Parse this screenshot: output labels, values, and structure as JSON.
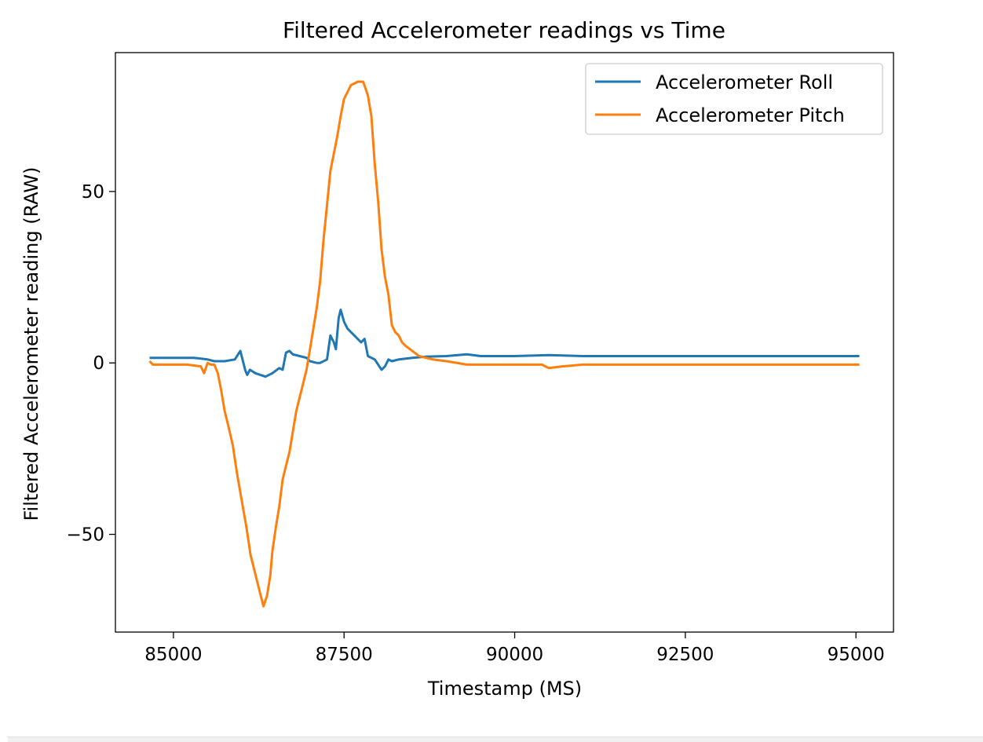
{
  "chart_data": {
    "type": "line",
    "title": "Filtered Accelerometer readings vs Time",
    "xlabel": "Timestamp (MS)",
    "ylabel": "Filtered Accelerometer reading (RAW)",
    "xlim": [
      84150,
      95550
    ],
    "ylim": [
      -78.5,
      90.5
    ],
    "xticks": [
      85000,
      87500,
      90000,
      92500,
      95000
    ],
    "xtick_labels": [
      "85000",
      "87500",
      "90000",
      "92500",
      "95000"
    ],
    "yticks": [
      50,
      0,
      -50
    ],
    "ytick_labels": [
      "50",
      "0",
      "−50"
    ],
    "grid": false,
    "legend_position": "top-right",
    "series": [
      {
        "name": "Accelerometer Roll",
        "color": "#1f77b4",
        "points": [
          [
            84650,
            1.5
          ],
          [
            85000,
            1.5
          ],
          [
            85300,
            1.5
          ],
          [
            85500,
            1.0
          ],
          [
            85600,
            0.5
          ],
          [
            85750,
            0.5
          ],
          [
            85900,
            1.0
          ],
          [
            85980,
            3.5
          ],
          [
            86000,
            2.0
          ],
          [
            86050,
            -2.0
          ],
          [
            86080,
            -3.5
          ],
          [
            86120,
            -2.0
          ],
          [
            86200,
            -3.0
          ],
          [
            86350,
            -4.0
          ],
          [
            86450,
            -3.0
          ],
          [
            86550,
            -1.5
          ],
          [
            86600,
            -2.0
          ],
          [
            86650,
            3.0
          ],
          [
            86700,
            3.5
          ],
          [
            86750,
            2.5
          ],
          [
            86850,
            2.0
          ],
          [
            86950,
            1.5
          ],
          [
            87000,
            0.5
          ],
          [
            87100,
            0.0
          ],
          [
            87150,
            0.0
          ],
          [
            87250,
            1.0
          ],
          [
            87300,
            8.0
          ],
          [
            87350,
            6.0
          ],
          [
            87380,
            4.0
          ],
          [
            87420,
            13.0
          ],
          [
            87450,
            15.5
          ],
          [
            87500,
            12.0
          ],
          [
            87550,
            10.0
          ],
          [
            87650,
            8.0
          ],
          [
            87750,
            6.0
          ],
          [
            87800,
            7.0
          ],
          [
            87850,
            2.0
          ],
          [
            87950,
            1.0
          ],
          [
            88050,
            -2.0
          ],
          [
            88100,
            -1.0
          ],
          [
            88150,
            1.0
          ],
          [
            88200,
            0.5
          ],
          [
            88300,
            1.0
          ],
          [
            88500,
            1.5
          ],
          [
            88700,
            1.8
          ],
          [
            89000,
            2.0
          ],
          [
            89300,
            2.5
          ],
          [
            89500,
            2.0
          ],
          [
            90000,
            2.0
          ],
          [
            90500,
            2.3
          ],
          [
            91000,
            2.0
          ],
          [
            91500,
            2.0
          ],
          [
            92000,
            2.0
          ],
          [
            92500,
            2.0
          ],
          [
            93000,
            2.0
          ],
          [
            93500,
            2.0
          ],
          [
            94000,
            2.0
          ],
          [
            94500,
            2.0
          ],
          [
            95050,
            2.0
          ]
        ]
      },
      {
        "name": "Accelerometer Pitch",
        "color": "#ff7f0e",
        "points": [
          [
            84650,
            0.5
          ],
          [
            84700,
            -0.5
          ],
          [
            84900,
            -0.5
          ],
          [
            85200,
            -0.5
          ],
          [
            85400,
            -1.0
          ],
          [
            85450,
            -3.0
          ],
          [
            85500,
            0.0
          ],
          [
            85550,
            -0.5
          ],
          [
            85600,
            -0.5
          ],
          [
            85650,
            -3.0
          ],
          [
            85700,
            -8.0
          ],
          [
            85750,
            -14.0
          ],
          [
            85800,
            -18.0
          ],
          [
            85870,
            -24.0
          ],
          [
            85930,
            -32.0
          ],
          [
            86000,
            -40.0
          ],
          [
            86070,
            -48.0
          ],
          [
            86130,
            -56.0
          ],
          [
            86180,
            -60.0
          ],
          [
            86230,
            -64.0
          ],
          [
            86280,
            -68.0
          ],
          [
            86320,
            -71.0
          ],
          [
            86370,
            -68.0
          ],
          [
            86420,
            -62.0
          ],
          [
            86450,
            -55.0
          ],
          [
            86500,
            -48.0
          ],
          [
            86550,
            -42.0
          ],
          [
            86600,
            -34.0
          ],
          [
            86650,
            -30.0
          ],
          [
            86700,
            -26.0
          ],
          [
            86750,
            -20.0
          ],
          [
            86800,
            -14.0
          ],
          [
            86850,
            -10.0
          ],
          [
            86900,
            -6.0
          ],
          [
            86950,
            -2.0
          ],
          [
            87000,
            4.0
          ],
          [
            87050,
            10.0
          ],
          [
            87100,
            16.0
          ],
          [
            87150,
            24.0
          ],
          [
            87200,
            36.0
          ],
          [
            87250,
            46.0
          ],
          [
            87300,
            56.0
          ],
          [
            87350,
            61.0
          ],
          [
            87400,
            66.0
          ],
          [
            87450,
            72.0
          ],
          [
            87500,
            77.0
          ],
          [
            87600,
            81.0
          ],
          [
            87700,
            82.0
          ],
          [
            87780,
            82.0
          ],
          [
            87850,
            78.0
          ],
          [
            87900,
            72.0
          ],
          [
            87950,
            58.0
          ],
          [
            88000,
            47.0
          ],
          [
            88050,
            33.0
          ],
          [
            88100,
            25.0
          ],
          [
            88150,
            20.0
          ],
          [
            88200,
            11.0
          ],
          [
            88250,
            9.0
          ],
          [
            88300,
            8.0
          ],
          [
            88350,
            6.0
          ],
          [
            88400,
            5.0
          ],
          [
            88500,
            3.5
          ],
          [
            88600,
            2.0
          ],
          [
            88800,
            1.0
          ],
          [
            89000,
            0.5
          ],
          [
            89300,
            -0.5
          ],
          [
            89600,
            -0.5
          ],
          [
            90000,
            -0.5
          ],
          [
            90400,
            -0.5
          ],
          [
            90500,
            -1.5
          ],
          [
            90700,
            -1.0
          ],
          [
            91000,
            -0.5
          ],
          [
            91500,
            -0.5
          ],
          [
            92000,
            -0.5
          ],
          [
            92500,
            -0.5
          ],
          [
            93000,
            -0.5
          ],
          [
            93500,
            -0.5
          ],
          [
            94000,
            -0.5
          ],
          [
            94500,
            -0.5
          ],
          [
            95050,
            -0.5
          ]
        ]
      }
    ]
  }
}
